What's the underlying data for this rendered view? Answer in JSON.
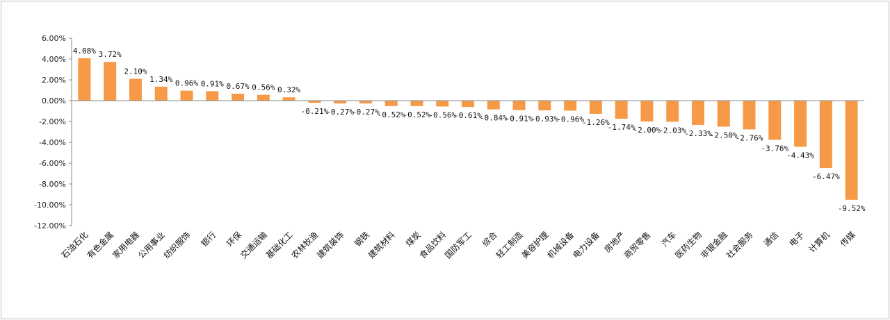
{
  "chart_data": {
    "type": "bar",
    "title": "",
    "xlabel": "",
    "ylabel": "",
    "ylim": [
      -12,
      6
    ],
    "ytick_step": 2,
    "ytick_labels": [
      "6.00%",
      "4.00%",
      "2.00%",
      "0.00%",
      "-2.00%",
      "-4.00%",
      "-6.00%",
      "-8.00%",
      "-10.00%",
      "-12.00%"
    ],
    "grid": false,
    "legend": "none",
    "bar_color": "#F79A47",
    "categories": [
      "石油石化",
      "有色金属",
      "家用电器",
      "公用事业",
      "纺织服饰",
      "银行",
      "环保",
      "交通运输",
      "基础化工",
      "农林牧渔",
      "建筑装饰",
      "钢铁",
      "建筑材料",
      "煤炭",
      "食品饮料",
      "国防军工",
      "综合",
      "轻工制造",
      "美容护理",
      "机械设备",
      "电力设备",
      "房地产",
      "商贸零售",
      "汽车",
      "医药生物",
      "非银金融",
      "社会服务",
      "通信",
      "电子",
      "计算机",
      "传媒"
    ],
    "values": [
      4.08,
      3.72,
      2.1,
      1.34,
      0.96,
      0.91,
      0.67,
      0.56,
      0.32,
      -0.21,
      -0.27,
      -0.27,
      -0.52,
      -0.52,
      -0.56,
      -0.61,
      -0.84,
      -0.91,
      -0.93,
      -0.96,
      -1.26,
      -1.74,
      -2.0,
      -2.03,
      -2.33,
      -2.5,
      -2.76,
      -3.76,
      -4.43,
      -6.47,
      -9.52
    ],
    "value_labels": [
      "4.08%",
      "3.72%",
      "2.10%",
      "1.34%",
      "0.96%",
      "0.91%",
      "0.67%",
      "0.56%",
      "0.32%",
      "-0.21%",
      "-0.27%",
      "-0.27%",
      "-0.52%",
      "-0.52%",
      "-0.56%",
      "-0.61%",
      "-0.84%",
      "-0.91%",
      "-0.93%",
      "-0.96%",
      "-1.26%",
      "-1.74%",
      "-2.00%",
      "-2.03%",
      "-2.33%",
      "-2.50%",
      "-2.76%",
      "-3.76%",
      "-4.43%",
      "-6.47%",
      "-9.52%"
    ]
  }
}
